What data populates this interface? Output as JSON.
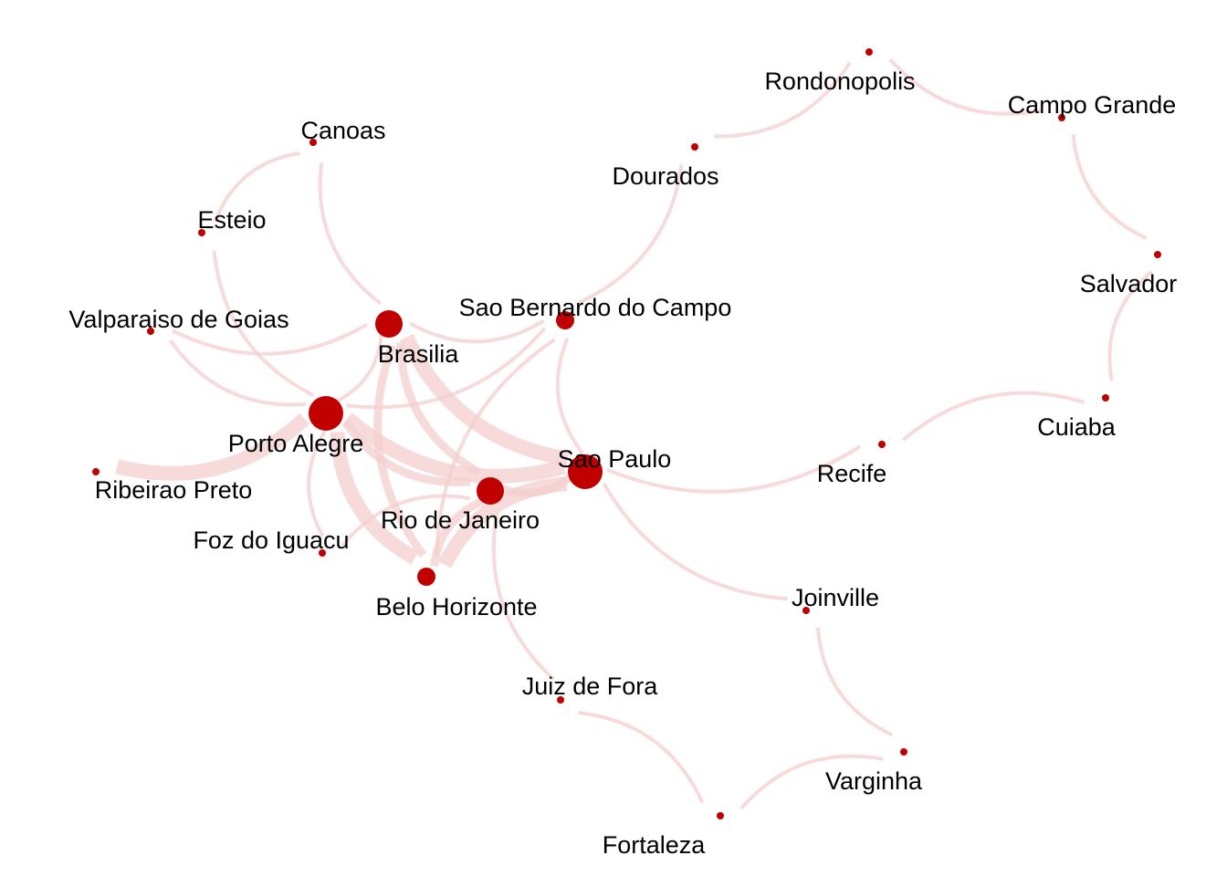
{
  "colors": {
    "node": "#c00000",
    "edge": "#f4cfcf",
    "label": "#000000",
    "background": "#ffffff"
  },
  "nodes": [
    {
      "id": "Sao Paulo",
      "label": "Sao Paulo",
      "size": "large"
    },
    {
      "id": "Porto Alegre",
      "label": "Porto Alegre",
      "size": "large"
    },
    {
      "id": "Brasilia",
      "label": "Brasilia",
      "size": "medium"
    },
    {
      "id": "Rio de Janeiro",
      "label": "Rio de Janeiro",
      "size": "medium"
    },
    {
      "id": "Belo Horizonte",
      "label": "Belo Horizonte",
      "size": "small-medium"
    },
    {
      "id": "Sao Bernardo do Campo",
      "label": "Sao Bernardo do Campo",
      "size": "small-medium"
    },
    {
      "id": "Canoas",
      "label": "Canoas",
      "size": "tiny"
    },
    {
      "id": "Esteio",
      "label": "Esteio",
      "size": "tiny"
    },
    {
      "id": "Valparaiso de Goias",
      "label": "Valparaiso de Goias",
      "size": "tiny"
    },
    {
      "id": "Ribeirao Preto",
      "label": "Ribeirao Preto",
      "size": "tiny"
    },
    {
      "id": "Foz do Iguacu",
      "label": "Foz do Iguacu",
      "size": "tiny"
    },
    {
      "id": "Dourados",
      "label": "Dourados",
      "size": "tiny"
    },
    {
      "id": "Rondonopolis",
      "label": "Rondonopolis",
      "size": "tiny"
    },
    {
      "id": "Campo Grande",
      "label": "Campo Grande",
      "size": "tiny"
    },
    {
      "id": "Salvador",
      "label": "Salvador",
      "size": "tiny"
    },
    {
      "id": "Cuiaba",
      "label": "Cuiaba",
      "size": "tiny"
    },
    {
      "id": "Recife",
      "label": "Recife",
      "size": "tiny"
    },
    {
      "id": "Joinville",
      "label": "Joinville",
      "size": "tiny"
    },
    {
      "id": "Juiz de Fora",
      "label": "Juiz de Fora",
      "size": "tiny"
    },
    {
      "id": "Varginha",
      "label": "Varginha",
      "size": "tiny"
    },
    {
      "id": "Fortaleza",
      "label": "Fortaleza",
      "size": "tiny"
    }
  ],
  "edges": [
    {
      "source": "Canoas",
      "target": "Esteio",
      "weight": "thin"
    },
    {
      "source": "Canoas",
      "target": "Brasilia",
      "weight": "thin"
    },
    {
      "source": "Esteio",
      "target": "Porto Alegre",
      "weight": "thin"
    },
    {
      "source": "Valparaiso de Goias",
      "target": "Porto Alegre",
      "weight": "thin"
    },
    {
      "source": "Valparaiso de Goias",
      "target": "Brasilia",
      "weight": "thin"
    },
    {
      "source": "Ribeirao Preto",
      "target": "Porto Alegre",
      "weight": "thick"
    },
    {
      "source": "Porto Alegre",
      "target": "Foz do Iguacu",
      "weight": "thin"
    },
    {
      "source": "Porto Alegre",
      "target": "Brasilia",
      "weight": "thin"
    },
    {
      "source": "Porto Alegre",
      "target": "Sao Paulo",
      "weight": "thick"
    },
    {
      "source": "Porto Alegre",
      "target": "Rio de Janeiro",
      "weight": "medium"
    },
    {
      "source": "Porto Alegre",
      "target": "Belo Horizonte",
      "weight": "thick"
    },
    {
      "source": "Porto Alegre",
      "target": "Sao Bernardo do Campo",
      "weight": "thin"
    },
    {
      "source": "Brasilia",
      "target": "Sao Paulo",
      "weight": "thick"
    },
    {
      "source": "Brasilia",
      "target": "Rio de Janeiro",
      "weight": "medium"
    },
    {
      "source": "Brasilia",
      "target": "Belo Horizonte",
      "weight": "medium"
    },
    {
      "source": "Brasilia",
      "target": "Sao Bernardo do Campo",
      "weight": "thin"
    },
    {
      "source": "Sao Bernardo do Campo",
      "target": "Dourados",
      "weight": "thin"
    },
    {
      "source": "Sao Bernardo do Campo",
      "target": "Sao Paulo",
      "weight": "thin"
    },
    {
      "source": "Sao Bernardo do Campo",
      "target": "Belo Horizonte",
      "weight": "thin"
    },
    {
      "source": "Rio de Janeiro",
      "target": "Sao Paulo",
      "weight": "medium"
    },
    {
      "source": "Rio de Janeiro",
      "target": "Belo Horizonte",
      "weight": "medium"
    },
    {
      "source": "Rio de Janeiro",
      "target": "Juiz de Fora",
      "weight": "thin"
    },
    {
      "source": "Rio de Janeiro",
      "target": "Foz do Iguacu",
      "weight": "thin"
    },
    {
      "source": "Sao Paulo",
      "target": "Belo Horizonte",
      "weight": "thick"
    },
    {
      "source": "Sao Paulo",
      "target": "Recife",
      "weight": "thin"
    },
    {
      "source": "Sao Paulo",
      "target": "Joinville",
      "weight": "thin"
    },
    {
      "source": "Dourados",
      "target": "Rondonopolis",
      "weight": "thin"
    },
    {
      "source": "Rondonopolis",
      "target": "Campo Grande",
      "weight": "thin"
    },
    {
      "source": "Campo Grande",
      "target": "Salvador",
      "weight": "thin"
    },
    {
      "source": "Salvador",
      "target": "Cuiaba",
      "weight": "thin"
    },
    {
      "source": "Cuiaba",
      "target": "Recife",
      "weight": "thin"
    },
    {
      "source": "Joinville",
      "target": "Varginha",
      "weight": "thin"
    },
    {
      "source": "Varginha",
      "target": "Fortaleza",
      "weight": "thin"
    },
    {
      "source": "Fortaleza",
      "target": "Juiz de Fora",
      "weight": "thin"
    }
  ]
}
